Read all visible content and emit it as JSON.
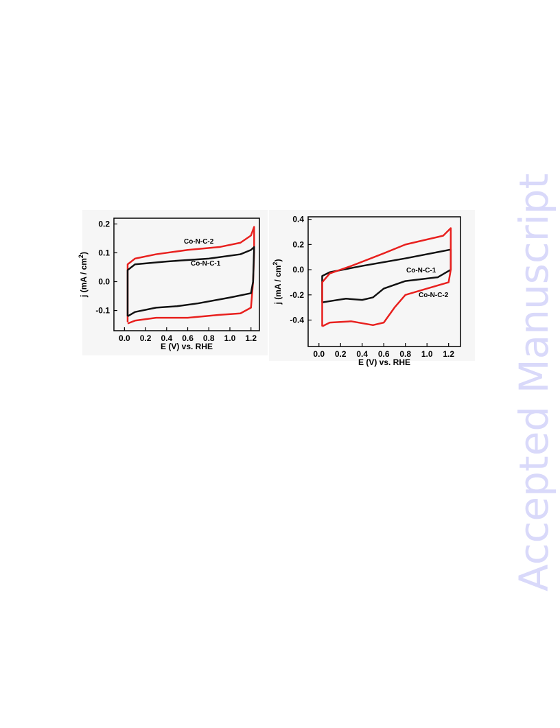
{
  "watermark": "Accepted Manuscript",
  "chart_data": [
    {
      "type": "line",
      "xlabel": "E (V) vs. RHE",
      "ylabel_parts": [
        "j (mA / cm",
        "2",
        ")"
      ],
      "xlim": [
        -0.1,
        1.28
      ],
      "ylim": [
        -0.17,
        0.22
      ],
      "xticks": [
        {
          "value": 0,
          "label": "0.0"
        },
        0.2,
        0.4,
        0.6,
        0.8,
        {
          "value": 1,
          "label": "1.0"
        },
        1.2
      ],
      "yticks": [
        -0.1,
        {
          "value": 0,
          "label": "0.0"
        },
        0.1,
        0.2
      ],
      "series": [
        {
          "name": "Co-N-C-2",
          "color": "#e8201e",
          "x": [
            0.03,
            0.03,
            0.1,
            0.3,
            0.6,
            0.9,
            1.1,
            1.2,
            1.23,
            1.23,
            1.22,
            1.2,
            1.1,
            0.9,
            0.6,
            0.3,
            0.1,
            0.03
          ],
          "values": [
            -0.14,
            0.06,
            0.08,
            0.095,
            0.11,
            0.12,
            0.135,
            0.16,
            0.19,
            0.1,
            0.0,
            -0.09,
            -0.11,
            -0.115,
            -0.125,
            -0.125,
            -0.135,
            -0.145
          ]
        },
        {
          "name": "Co-N-C-1",
          "color": "#111111",
          "x": [
            0.03,
            0.03,
            0.1,
            0.4,
            0.8,
            1.1,
            1.2,
            1.23,
            1.22,
            1.2,
            1.0,
            0.7,
            0.5,
            0.3,
            0.1,
            0.03
          ],
          "values": [
            -0.12,
            0.04,
            0.06,
            0.07,
            0.08,
            0.095,
            0.11,
            0.12,
            0.0,
            -0.04,
            -0.055,
            -0.075,
            -0.085,
            -0.09,
            -0.105,
            -0.12
          ]
        }
      ]
    },
    {
      "type": "line",
      "xlabel": "E (V) vs. RHE",
      "ylabel_parts": [
        "j (mA / cm",
        "2",
        ")"
      ],
      "xlim": [
        -0.1,
        1.31
      ],
      "ylim": [
        -0.61,
        0.42
      ],
      "xticks": [
        {
          "value": 0,
          "label": "0.0"
        },
        0.2,
        0.4,
        0.6,
        0.8,
        {
          "value": 1,
          "label": "1.0"
        },
        1.2
      ],
      "yticks": [
        -0.4,
        -0.2,
        {
          "value": 0,
          "label": "0.0"
        },
        0.2,
        0.4
      ],
      "series": [
        {
          "name": "Co-N-C-1",
          "color": "#111111",
          "x": [
            0.03,
            0.03,
            0.1,
            0.4,
            0.8,
            1.1,
            1.22,
            1.22,
            1.1,
            0.8,
            0.6,
            0.5,
            0.4,
            0.25,
            0.1,
            0.03
          ],
          "values": [
            -0.26,
            -0.05,
            -0.02,
            0.03,
            0.09,
            0.14,
            0.16,
            0.0,
            -0.06,
            -0.09,
            -0.15,
            -0.22,
            -0.24,
            -0.23,
            -0.25,
            -0.26
          ]
        },
        {
          "name": "Co-N-C-2",
          "color": "#e8201e",
          "x": [
            0.03,
            0.03,
            0.1,
            0.3,
            0.6,
            0.8,
            1.0,
            1.15,
            1.22,
            1.22,
            1.2,
            1.0,
            0.8,
            0.7,
            0.6,
            0.5,
            0.3,
            0.1,
            0.03
          ],
          "values": [
            -0.45,
            -0.1,
            -0.03,
            0.03,
            0.13,
            0.2,
            0.24,
            0.27,
            0.33,
            0.0,
            -0.1,
            -0.15,
            -0.2,
            -0.3,
            -0.42,
            -0.44,
            -0.41,
            -0.42,
            -0.45
          ]
        }
      ]
    }
  ]
}
